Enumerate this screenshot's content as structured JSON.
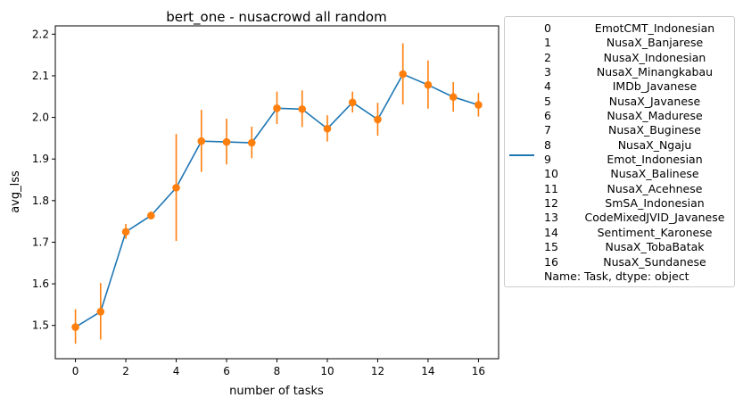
{
  "chart_data": {
    "type": "line",
    "title": "bert_one - nusacrowd all random",
    "xlabel": "number of tasks",
    "ylabel": "avg_lss",
    "xlim": [
      -0.8,
      16.8
    ],
    "ylim": [
      1.42,
      2.22
    ],
    "xticks": [
      0,
      2,
      4,
      6,
      8,
      10,
      12,
      14,
      16
    ],
    "xtick_labels": [
      "0",
      "2",
      "4",
      "6",
      "8",
      "10",
      "12",
      "14",
      "16"
    ],
    "yticks": [
      1.5,
      1.6,
      1.7,
      1.8,
      1.9,
      2.0,
      2.1,
      2.2
    ],
    "ytick_labels": [
      "1.5",
      "1.6",
      "1.7",
      "1.8",
      "1.9",
      "2.0",
      "2.1",
      "2.2"
    ],
    "grid": false,
    "legend_position": "outside-right",
    "line_color": "#1f77b4",
    "marker_color": "#ff7f0e",
    "x": [
      0,
      1,
      2,
      3,
      4,
      5,
      6,
      7,
      8,
      9,
      10,
      11,
      12,
      13,
      14,
      15,
      16
    ],
    "y": [
      1.496,
      1.533,
      1.725,
      1.764,
      1.831,
      1.943,
      1.941,
      1.939,
      2.022,
      2.02,
      1.973,
      2.036,
      1.995,
      2.104,
      2.078,
      2.049,
      2.03
    ],
    "err_low": [
      1.456,
      1.466,
      1.708,
      1.755,
      1.703,
      1.869,
      1.887,
      1.902,
      1.984,
      1.977,
      1.942,
      2.012,
      1.956,
      2.031,
      2.021,
      2.014,
      2.002
    ],
    "err_high": [
      1.539,
      1.602,
      1.744,
      1.774,
      1.96,
      2.018,
      1.997,
      1.978,
      2.062,
      2.065,
      2.005,
      2.062,
      2.035,
      2.178,
      2.137,
      2.085,
      2.059
    ]
  },
  "legend": {
    "rows": [
      {
        "index": "0",
        "name": "EmotCMT_Indonesian"
      },
      {
        "index": "1",
        "name": "NusaX_Banjarese"
      },
      {
        "index": "2",
        "name": "NusaX_Indonesian"
      },
      {
        "index": "3",
        "name": "NusaX_Minangkabau"
      },
      {
        "index": "4",
        "name": "IMDb_Javanese"
      },
      {
        "index": "5",
        "name": "NusaX_Javanese"
      },
      {
        "index": "6",
        "name": "NusaX_Madurese"
      },
      {
        "index": "7",
        "name": "NusaX_Buginese"
      },
      {
        "index": "8",
        "name": "NusaX_Ngaju"
      },
      {
        "index": "9",
        "name": "Emot_Indonesian"
      },
      {
        "index": "10",
        "name": "NusaX_Balinese"
      },
      {
        "index": "11",
        "name": "NusaX_Acehnese"
      },
      {
        "index": "12",
        "name": "SmSA_Indonesian"
      },
      {
        "index": "13",
        "name": "CodeMixedJVID_Javanese"
      },
      {
        "index": "14",
        "name": "Sentiment_Karonese"
      },
      {
        "index": "15",
        "name": "NusaX_TobaBatak"
      },
      {
        "index": "16",
        "name": "NusaX_Sundanese"
      }
    ],
    "footer": "Name: Task, dtype: object"
  }
}
